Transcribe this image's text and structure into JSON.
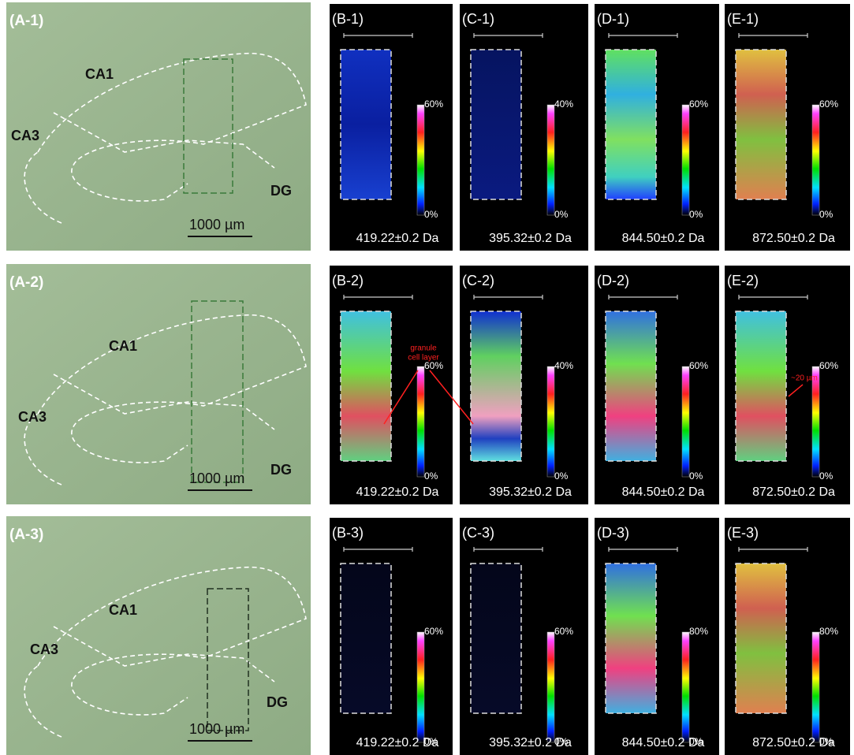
{
  "rows": [
    {
      "a": {
        "label": "(A-1)",
        "regions": [
          "CA1",
          "CA3",
          "DG"
        ],
        "scale": "1000 µm"
      },
      "ms": [
        {
          "label": "(B-1)",
          "max": "60%",
          "min": "0%",
          "mass": "419.22±0.2 Da"
        },
        {
          "label": "(C-1)",
          "max": "40%",
          "min": "0%",
          "mass": "395.32±0.2 Da"
        },
        {
          "label": "(D-1)",
          "max": "60%",
          "min": "0%",
          "mass": "844.50±0.2 Da"
        },
        {
          "label": "(E-1)",
          "max": "60%",
          "min": "0%",
          "mass": "872.50±0.2 Da"
        }
      ]
    },
    {
      "a": {
        "label": "(A-2)",
        "regions": [
          "CA1",
          "CA3",
          "DG"
        ],
        "scale": "1000 µm"
      },
      "ms": [
        {
          "label": "(B-2)",
          "max": "60%",
          "min": "0%",
          "mass": "419.22±0.2 Da"
        },
        {
          "label": "(C-2)",
          "max": "40%",
          "min": "0%",
          "mass": "395.32±0.2 Da"
        },
        {
          "label": "(D-2)",
          "max": "60%",
          "min": "0%",
          "mass": "844.50±0.2 Da"
        },
        {
          "label": "(E-2)",
          "max": "60%",
          "min": "0%",
          "mass": "872.50±0.2 Da"
        }
      ]
    },
    {
      "a": {
        "label": "(A-3)",
        "regions": [
          "CA1",
          "CA3",
          "DG"
        ],
        "scale": "1000 µm"
      },
      "ms": [
        {
          "label": "(B-3)",
          "max": "60%",
          "min": "0%",
          "mass": "419.22±0.2 Da"
        },
        {
          "label": "(C-3)",
          "max": "60%",
          "min": "0%",
          "mass": "395.32±0.2 Da"
        },
        {
          "label": "(D-3)",
          "max": "80%",
          "min": "0%",
          "mass": "844.50±0.2 Da"
        },
        {
          "label": "(E-3)",
          "max": "80%",
          "min": "0%",
          "mass": "872.50±0.2 Da"
        }
      ]
    }
  ],
  "annotations": {
    "granule": [
      "granule",
      "cell layer"
    ],
    "size": "~20 µm"
  }
}
